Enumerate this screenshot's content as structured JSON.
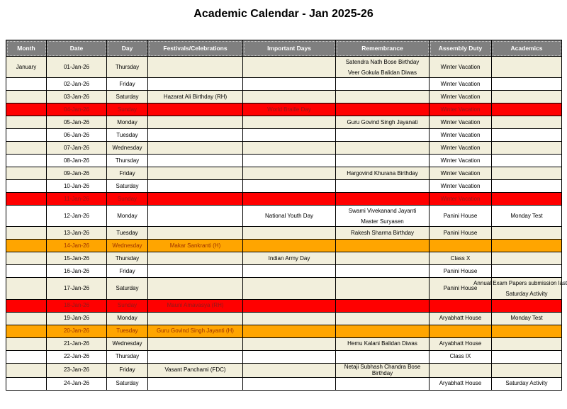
{
  "title": "Academic Calendar - Jan 2025-26",
  "colors": {
    "header_bg": "#7f7f7f",
    "header_text": "#ffffff",
    "row_cream": "#f2efdc",
    "row_white": "#ffffff",
    "sunday_bg": "#ff0000",
    "sunday_text": "#8f1a1a",
    "holiday_bg": "#ffa500",
    "holiday_text": "#9e3000",
    "border": "#000000"
  },
  "table": {
    "columns": [
      "Month",
      "Date",
      "Day",
      "Festivals/Celebrations",
      "Important Days",
      "Remembrance",
      "Assembly Duty",
      "Academics"
    ],
    "rows": [
      {
        "month": "January",
        "date": "01-Jan-26",
        "day": "Thursday",
        "festivals": "",
        "important": "",
        "remembrance": [
          "Satendra Nath Bose Birthday",
          "Veer Gokula Balidan Diwas"
        ],
        "assembly": "Winter Vacation",
        "academics": "",
        "variant": "cream"
      },
      {
        "month": "",
        "date": "02-Jan-26",
        "day": "Friday",
        "festivals": "",
        "important": "",
        "remembrance": "",
        "assembly": "Winter Vacation",
        "academics": "",
        "variant": "white"
      },
      {
        "month": "",
        "date": "03-Jan-26",
        "day": "Saturday",
        "festivals": "Hazarat Ali Birthday (RH)",
        "important": "",
        "remembrance": "",
        "assembly": "Winter Vacation",
        "academics": "",
        "variant": "cream"
      },
      {
        "month": "",
        "date": "04-Jan-26",
        "day": "Sunday",
        "festivals": "",
        "important": "World Braille Day",
        "remembrance": "",
        "assembly": "Winter Vacation",
        "academics": "",
        "variant": "red"
      },
      {
        "month": "",
        "date": "05-Jan-26",
        "day": "Monday",
        "festivals": "",
        "important": "",
        "remembrance": "Guru Govind Singh Jayanati",
        "assembly": "Winter Vacation",
        "academics": "",
        "variant": "cream"
      },
      {
        "month": "",
        "date": "06-Jan-26",
        "day": "Tuesday",
        "festivals": "",
        "important": "",
        "remembrance": "",
        "assembly": "Winter Vacation",
        "academics": "",
        "variant": "white"
      },
      {
        "month": "",
        "date": "07-Jan-26",
        "day": "Wednesday",
        "festivals": "",
        "important": "",
        "remembrance": "",
        "assembly": "Winter Vacation",
        "academics": "",
        "variant": "cream"
      },
      {
        "month": "",
        "date": "08-Jan-26",
        "day": "Thursday",
        "festivals": "",
        "important": "",
        "remembrance": "",
        "assembly": "Winter Vacation",
        "academics": "",
        "variant": "white"
      },
      {
        "month": "",
        "date": "09-Jan-26",
        "day": "Friday",
        "festivals": "",
        "important": "",
        "remembrance": "Hargovind Khurana Birthday",
        "assembly": "Winter Vacation",
        "academics": "",
        "variant": "cream"
      },
      {
        "month": "",
        "date": "10-Jan-26",
        "day": "Saturday",
        "festivals": "",
        "important": "",
        "remembrance": "",
        "assembly": "Winter Vacation",
        "academics": "",
        "variant": "white"
      },
      {
        "month": "",
        "date": "11-Jan-26",
        "day": "Sunday",
        "festivals": "",
        "important": "",
        "remembrance": "",
        "assembly": "Winter Vacation",
        "academics": "",
        "variant": "red"
      },
      {
        "month": "",
        "date": "12-Jan-26",
        "day": "Monday",
        "festivals": "",
        "important": "National Youth Day",
        "remembrance": [
          "Swami Vivekanand Jayanti",
          "Master Suryasen"
        ],
        "assembly": "Panini House",
        "academics": "Monday Test",
        "variant": "white"
      },
      {
        "month": "",
        "date": "13-Jan-26",
        "day": "Tuesday",
        "festivals": "",
        "important": "",
        "remembrance": "Rakesh Sharma Birthday",
        "assembly": "Panini House",
        "academics": "",
        "variant": "cream"
      },
      {
        "month": "",
        "date": "14-Jan-26",
        "day": "Wednesday",
        "festivals": "Makar Sankranti (H)",
        "important": "",
        "remembrance": "",
        "assembly": "",
        "academics": "",
        "variant": "orange"
      },
      {
        "month": "",
        "date": "15-Jan-26",
        "day": "Thursday",
        "festivals": "",
        "important": "Indian Army Day",
        "remembrance": "",
        "assembly": "Class X",
        "academics": "",
        "variant": "cream"
      },
      {
        "month": "",
        "date": "16-Jan-26",
        "day": "Friday",
        "festivals": "",
        "important": "",
        "remembrance": "",
        "assembly": "Panini House",
        "academics": "",
        "variant": "white"
      },
      {
        "month": "",
        "date": "17-Jan-26",
        "day": "Saturday",
        "festivals": "",
        "important": "",
        "remembrance": "",
        "assembly": "Panini House",
        "academics": [
          "Annual Exam Papers submission last date",
          "Saturday Activity"
        ],
        "variant": "cream"
      },
      {
        "month": "",
        "date": "18-Jan-26",
        "day": "Sunday",
        "festivals": "Mauni Amavasya (RH)",
        "important": "",
        "remembrance": "",
        "assembly": "",
        "academics": "",
        "variant": "red"
      },
      {
        "month": "",
        "date": "19-Jan-26",
        "day": "Monday",
        "festivals": "",
        "important": "",
        "remembrance": "",
        "assembly": "Aryabhatt House",
        "academics": "Monday Test",
        "variant": "cream"
      },
      {
        "month": "",
        "date": "20-Jan-26",
        "day": "Tuesday",
        "festivals": "Guru Govind Singh Jayanti (H)",
        "important": "",
        "remembrance": "",
        "assembly": "",
        "academics": "",
        "variant": "orange"
      },
      {
        "month": "",
        "date": "21-Jan-26",
        "day": "Wednesday",
        "festivals": "",
        "important": "",
        "remembrance": "Hemu Kalani Balidan Diwas",
        "assembly": "Aryabhatt House",
        "academics": "",
        "variant": "cream"
      },
      {
        "month": "",
        "date": "22-Jan-26",
        "day": "Thursday",
        "festivals": "",
        "important": "",
        "remembrance": "",
        "assembly": "Class IX",
        "academics": "",
        "variant": "white"
      },
      {
        "month": "",
        "date": "23-Jan-26",
        "day": "Friday",
        "festivals": "Vasant Panchami (FDC)",
        "important": "",
        "remembrance": "Netaji Subhash Chandra Bose Birthday",
        "assembly": "",
        "academics": "",
        "variant": "cream"
      },
      {
        "month": "",
        "date": "24-Jan-26",
        "day": "Saturday",
        "festivals": "",
        "important": "",
        "remembrance": "",
        "assembly": "Aryabhatt House",
        "academics": "Saturday Activity",
        "variant": "white"
      }
    ]
  }
}
